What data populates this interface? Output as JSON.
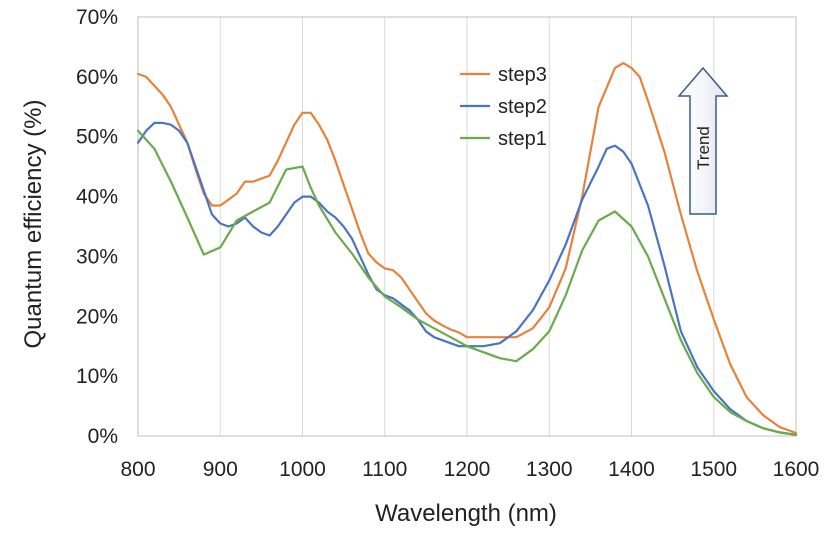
{
  "chart_data": {
    "type": "line",
    "title": "",
    "xlabel": "Wavelength (nm)",
    "ylabel": "Quantum efficiency (%)",
    "xlim": [
      800,
      1600
    ],
    "ylim": [
      0,
      70
    ],
    "xticks": [
      800,
      900,
      1000,
      1100,
      1200,
      1300,
      1400,
      1500,
      1600
    ],
    "yticks": [
      0,
      10,
      20,
      30,
      40,
      50,
      60,
      70
    ],
    "ytick_labels": [
      "0%",
      "10%",
      "20%",
      "30%",
      "40%",
      "50%",
      "60%",
      "70%"
    ],
    "grid": "vertical",
    "legend_position": "top-center",
    "annotation": {
      "text": "Trend",
      "shape": "up-arrow"
    },
    "series": [
      {
        "name": "step3",
        "color": "#e8823a",
        "x": [
          800,
          810,
          820,
          830,
          840,
          850,
          860,
          870,
          880,
          890,
          900,
          910,
          920,
          930,
          940,
          950,
          960,
          970,
          980,
          990,
          1000,
          1010,
          1020,
          1030,
          1040,
          1050,
          1060,
          1070,
          1080,
          1090,
          1100,
          1110,
          1120,
          1130,
          1140,
          1150,
          1160,
          1170,
          1180,
          1190,
          1200,
          1220,
          1240,
          1260,
          1280,
          1300,
          1320,
          1340,
          1360,
          1380,
          1390,
          1400,
          1410,
          1420,
          1440,
          1460,
          1480,
          1500,
          1520,
          1540,
          1560,
          1580,
          1600
        ],
        "y": [
          60.5,
          60,
          58.5,
          57,
          55,
          52,
          49,
          44.5,
          40.5,
          38.5,
          38.5,
          39.5,
          40.5,
          42.5,
          42.5,
          43,
          43.5,
          46,
          49,
          52,
          54,
          54,
          52,
          49.5,
          46,
          42,
          38,
          34,
          30.5,
          29,
          28,
          27.7,
          26.5,
          24.5,
          22.5,
          20.5,
          19.3,
          18.5,
          17.8,
          17.3,
          16.5,
          16.5,
          16.5,
          16.5,
          18,
          21.5,
          28,
          40,
          55,
          61.5,
          62.3,
          61.5,
          60,
          56,
          47.5,
          37,
          27.5,
          19.5,
          12,
          6.5,
          3.5,
          1.5,
          0.5
        ]
      },
      {
        "name": "step2",
        "color": "#4a74c4",
        "x": [
          800,
          810,
          820,
          830,
          840,
          850,
          860,
          870,
          880,
          890,
          900,
          910,
          920,
          930,
          940,
          950,
          960,
          970,
          980,
          990,
          1000,
          1010,
          1020,
          1030,
          1040,
          1050,
          1060,
          1070,
          1080,
          1090,
          1100,
          1110,
          1120,
          1130,
          1140,
          1150,
          1160,
          1170,
          1180,
          1190,
          1200,
          1220,
          1240,
          1260,
          1280,
          1300,
          1320,
          1340,
          1360,
          1370,
          1380,
          1390,
          1400,
          1420,
          1440,
          1460,
          1480,
          1500,
          1520,
          1540,
          1560,
          1580,
          1600
        ],
        "y": [
          49,
          51,
          52.3,
          52.3,
          52,
          51,
          49,
          45,
          41,
          37,
          35.5,
          35,
          35.5,
          36.5,
          35,
          34,
          33.5,
          35,
          37,
          39,
          40,
          40,
          39,
          37.5,
          36.5,
          35,
          33,
          30,
          27,
          24.5,
          23.5,
          23,
          22,
          21,
          19.5,
          17.5,
          16.5,
          16,
          15.5,
          15,
          15,
          15,
          15.5,
          17.5,
          21,
          26,
          32,
          39.5,
          45,
          48,
          48.5,
          47.5,
          45.5,
          38.5,
          28.5,
          17.5,
          11.5,
          7.5,
          4.5,
          2.5,
          1.3,
          0.6,
          0.2
        ]
      },
      {
        "name": "step1",
        "color": "#6aab4a",
        "x": [
          800,
          820,
          840,
          860,
          880,
          900,
          920,
          940,
          960,
          980,
          1000,
          1010,
          1020,
          1040,
          1060,
          1080,
          1100,
          1120,
          1140,
          1160,
          1180,
          1200,
          1220,
          1240,
          1260,
          1280,
          1300,
          1320,
          1340,
          1360,
          1380,
          1400,
          1420,
          1440,
          1460,
          1480,
          1500,
          1520,
          1540,
          1560,
          1580,
          1600
        ],
        "y": [
          51,
          48,
          42.5,
          36.5,
          30.3,
          31.5,
          36,
          37.5,
          39,
          44.5,
          45,
          41.5,
          38.5,
          34,
          30.5,
          26.5,
          23.3,
          21.5,
          19.5,
          18,
          16.5,
          15,
          14,
          13,
          12.5,
          14.5,
          17.5,
          23.5,
          31,
          36,
          37.5,
          35,
          30,
          23,
          16,
          10.5,
          6.5,
          4,
          2.5,
          1.3,
          0.6,
          0.2
        ]
      }
    ]
  }
}
